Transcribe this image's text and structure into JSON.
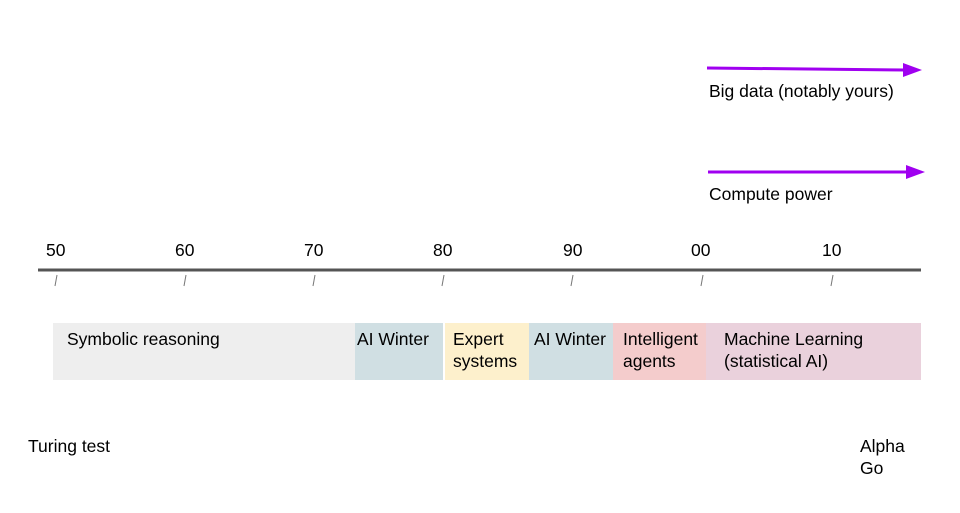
{
  "trends": [
    {
      "label": "Big data (notably yours)",
      "color": "#a000f0"
    },
    {
      "label": "Compute power",
      "color": "#a000f0"
    }
  ],
  "axis": {
    "ticks": [
      "50",
      "60",
      "70",
      "80",
      "90",
      "00",
      "10"
    ],
    "line_color": "#555555"
  },
  "eras": [
    {
      "label": "Symbolic reasoning",
      "color": "#eeeeee"
    },
    {
      "label": "AI Winter",
      "color": "#d0dfe3"
    },
    {
      "label": "Expert\nsystems",
      "color": "#fdf0cc"
    },
    {
      "label": "AI Winter",
      "color": "#d0dfe3"
    },
    {
      "label": "Intelligent\nagents",
      "color": "#f4cccc"
    },
    {
      "label": "Machine Learning\n(statistical AI)",
      "color": "#ead1dc"
    }
  ],
  "events": {
    "left": "Turing test",
    "right": "Alpha\nGo"
  }
}
